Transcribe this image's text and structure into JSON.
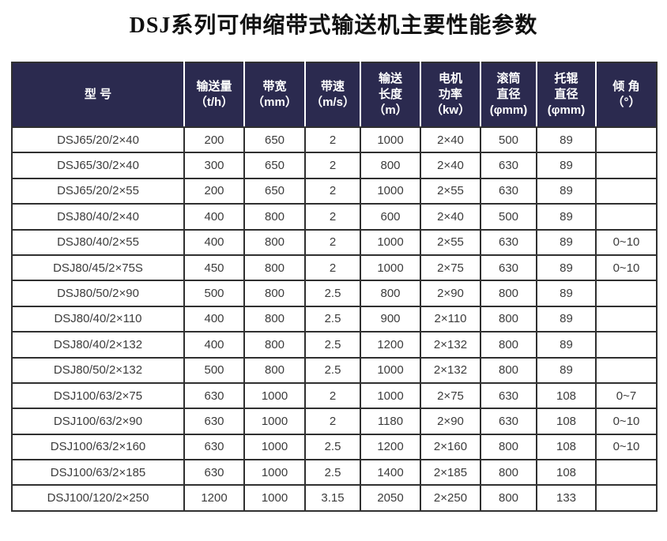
{
  "title": "DSJ系列可伸缩带式输送机主要性能参数",
  "colors": {
    "header_bg": "#2b2a4f",
    "header_text": "#ffffff",
    "header_divider": "#ffffff",
    "border": "#303030",
    "cell_text": "#3c3c3c",
    "title_text": "#111111",
    "page_bg": "#ffffff"
  },
  "table": {
    "header": [
      {
        "lines": [
          "型 号"
        ]
      },
      {
        "lines": [
          "输送量",
          "（t/h）"
        ]
      },
      {
        "lines": [
          "带宽",
          "（mm）"
        ]
      },
      {
        "lines": [
          "带速",
          "（m/s）"
        ]
      },
      {
        "lines": [
          "输送",
          "长度",
          "（m）"
        ]
      },
      {
        "lines": [
          "电机",
          "功率",
          "（kw）"
        ]
      },
      {
        "lines": [
          "滚筒",
          "直径",
          "(φmm)"
        ]
      },
      {
        "lines": [
          "托辊",
          "直径",
          "(φmm)"
        ]
      },
      {
        "lines": [
          "倾 角",
          "（°）"
        ]
      }
    ],
    "rows": [
      [
        "DSJ65/20/2×40",
        "200",
        "650",
        "2",
        "1000",
        "2×40",
        "500",
        "89",
        ""
      ],
      [
        "DSJ65/30/2×40",
        "300",
        "650",
        "2",
        "800",
        "2×40",
        "630",
        "89",
        ""
      ],
      [
        "DSJ65/20/2×55",
        "200",
        "650",
        "2",
        "1000",
        "2×55",
        "630",
        "89",
        ""
      ],
      [
        "DSJ80/40/2×40",
        "400",
        "800",
        "2",
        "600",
        "2×40",
        "500",
        "89",
        ""
      ],
      [
        "DSJ80/40/2×55",
        "400",
        "800",
        "2",
        "1000",
        "2×55",
        "630",
        "89",
        "0~10"
      ],
      [
        "DSJ80/45/2×75S",
        "450",
        "800",
        "2",
        "1000",
        "2×75",
        "630",
        "89",
        "0~10"
      ],
      [
        "DSJ80/50/2×90",
        "500",
        "800",
        "2.5",
        "800",
        "2×90",
        "800",
        "89",
        ""
      ],
      [
        "DSJ80/40/2×110",
        "400",
        "800",
        "2.5",
        "900",
        "2×110",
        "800",
        "89",
        ""
      ],
      [
        "DSJ80/40/2×132",
        "400",
        "800",
        "2.5",
        "1200",
        "2×132",
        "800",
        "89",
        ""
      ],
      [
        "DSJ80/50/2×132",
        "500",
        "800",
        "2.5",
        "1000",
        "2×132",
        "800",
        "89",
        ""
      ],
      [
        "DSJ100/63/2×75",
        "630",
        "1000",
        "2",
        "1000",
        "2×75",
        "630",
        "108",
        "0~7"
      ],
      [
        "DSJ100/63/2×90",
        "630",
        "1000",
        "2",
        "1180",
        "2×90",
        "630",
        "108",
        "0~10"
      ],
      [
        "DSJ100/63/2×160",
        "630",
        "1000",
        "2.5",
        "1200",
        "2×160",
        "800",
        "108",
        "0~10"
      ],
      [
        "DSJ100/63/2×185",
        "630",
        "1000",
        "2.5",
        "1400",
        "2×185",
        "800",
        "108",
        ""
      ],
      [
        "DSJ100/120/2×250",
        "1200",
        "1000",
        "3.15",
        "2050",
        "2×250",
        "800",
        "133",
        ""
      ]
    ]
  }
}
